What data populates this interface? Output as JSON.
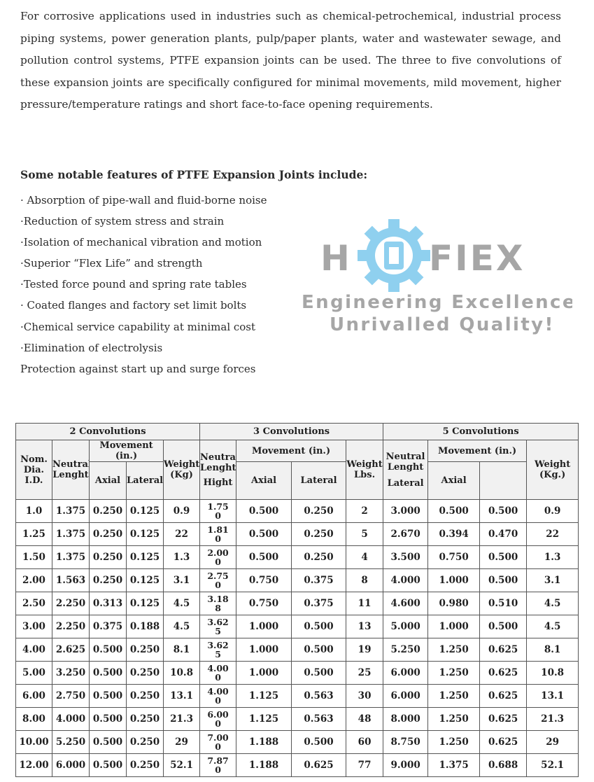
{
  "intro": "For corrosive applications used in industries such as chemical-petrochemical, industrial process piping systems, power generation plants, pulp/paper plants, water and wastewater sewage, and pollution control systems, PTFE expansion joints can be used. The three to five convolutions of these expansion joints are specifically configured for minimal movements, mild movement, higher pressure/temperature ratings and short face-to-face opening requirements.",
  "features": {
    "heading": "Some notable features of PTFE Expansion Joints include:",
    "items": [
      "· Absorption of pipe-wall and fluid-borne noise",
      "·Reduction of system stress and strain",
      "·Isolation of mechanical vibration and motion",
      "·Superior “Flex Life” and strength",
      "·Tested force pound and spring rate tables",
      "· Coated flanges and factory set limit bolts",
      "·Chemical service capability at minimal cost",
      "·Elimination of electrolysis",
      "Protection against start up and surge forces"
    ]
  },
  "logo": {
    "brand_left": "H",
    "brand_right": "FIEX",
    "tagline_1": "Engineering Excellence,",
    "tagline_2": "Unrivalled Quality!",
    "gear_color": "#8fd0ef",
    "text_color": "#a6a6a6"
  },
  "table": {
    "groups": [
      "2 Convolutions",
      "3 Convolutions",
      "5 Convolutions"
    ],
    "nom_dia": "Nom. Dia. I.D.",
    "neutral_lenght": "Neutral Lenght",
    "movement_in": "Movement (in.)",
    "movement_in_5": "Movement (in.)",
    "axial": "Axial",
    "lateral": "Lateral",
    "weight_kg": "Weight (Kg)",
    "neutral_lenght_3": "Neutral Lenght",
    "hight": "Hight",
    "weight_lbs": "Weight Lbs.",
    "neutral_lenght_5": "Neutral Lenght",
    "lateral_5": "Lateral",
    "weight_kg_5": "Weight (Kg.)",
    "rows": [
      [
        "1.0",
        "1.375",
        "0.250",
        "0.125",
        "0.9",
        "1.75\n0",
        "0.500",
        "0.250",
        "2",
        "3.000",
        "0.500",
        "0.500",
        "0.9"
      ],
      [
        "1.25",
        "1.375",
        "0.250",
        "0.125",
        "22",
        "1.81\n0",
        "0.500",
        "0.250",
        "5",
        "2.670",
        "0.394",
        "0.470",
        "22"
      ],
      [
        "1.50",
        "1.375",
        "0.250",
        "0.125",
        "1.3",
        "2.00\n0",
        "0.500",
        "0.250",
        "4",
        "3.500",
        "0.750",
        "0.500",
        "1.3"
      ],
      [
        "2.00",
        "1.563",
        "0.250",
        "0.125",
        "3.1",
        "2.75\n0",
        "0.750",
        "0.375",
        "8",
        "4.000",
        "1.000",
        "0.500",
        "3.1"
      ],
      [
        "2.50",
        "2.250",
        "0.313",
        "0.125",
        "4.5",
        "3.18\n8",
        "0.750",
        "0.375",
        "11",
        "4.600",
        "0.980",
        "0.510",
        "4.5"
      ],
      [
        "3.00",
        "2.250",
        "0.375",
        "0.188",
        "4.5",
        "3.62\n5",
        "1.000",
        "0.500",
        "13",
        "5.000",
        "1.000",
        "0.500",
        "4.5"
      ],
      [
        "4.00",
        "2.625",
        "0.500",
        "0.250",
        "8.1",
        "3.62\n5",
        "1.000",
        "0.500",
        "19",
        "5.250",
        "1.250",
        "0.625",
        "8.1"
      ],
      [
        "5.00",
        "3.250",
        "0.500",
        "0.250",
        "10.8",
        "4.00\n0",
        "1.000",
        "0.500",
        "25",
        "6.000",
        "1.250",
        "0.625",
        "10.8"
      ],
      [
        "6.00",
        "2.750",
        "0.500",
        "0.250",
        "13.1",
        "4.00\n0",
        "1.125",
        "0.563",
        "30",
        "6.000",
        "1.250",
        "0.625",
        "13.1"
      ],
      [
        "8.00",
        "4.000",
        "0.500",
        "0.250",
        "21.3",
        "6.00\n0",
        "1.125",
        "0.563",
        "48",
        "8.000",
        "1.250",
        "0.625",
        "21.3"
      ],
      [
        "10.00",
        "5.250",
        "0.500",
        "0.250",
        "29",
        "7.00\n0",
        "1.188",
        "0.500",
        "60",
        "8.750",
        "1.250",
        "0.625",
        "29"
      ],
      [
        "12.00",
        "6.000",
        "0.500",
        "0.250",
        "52.1",
        "7.87\n0",
        "1.188",
        "0.625",
        "77",
        "9.000",
        "1.375",
        "0.688",
        "52.1"
      ]
    ]
  }
}
